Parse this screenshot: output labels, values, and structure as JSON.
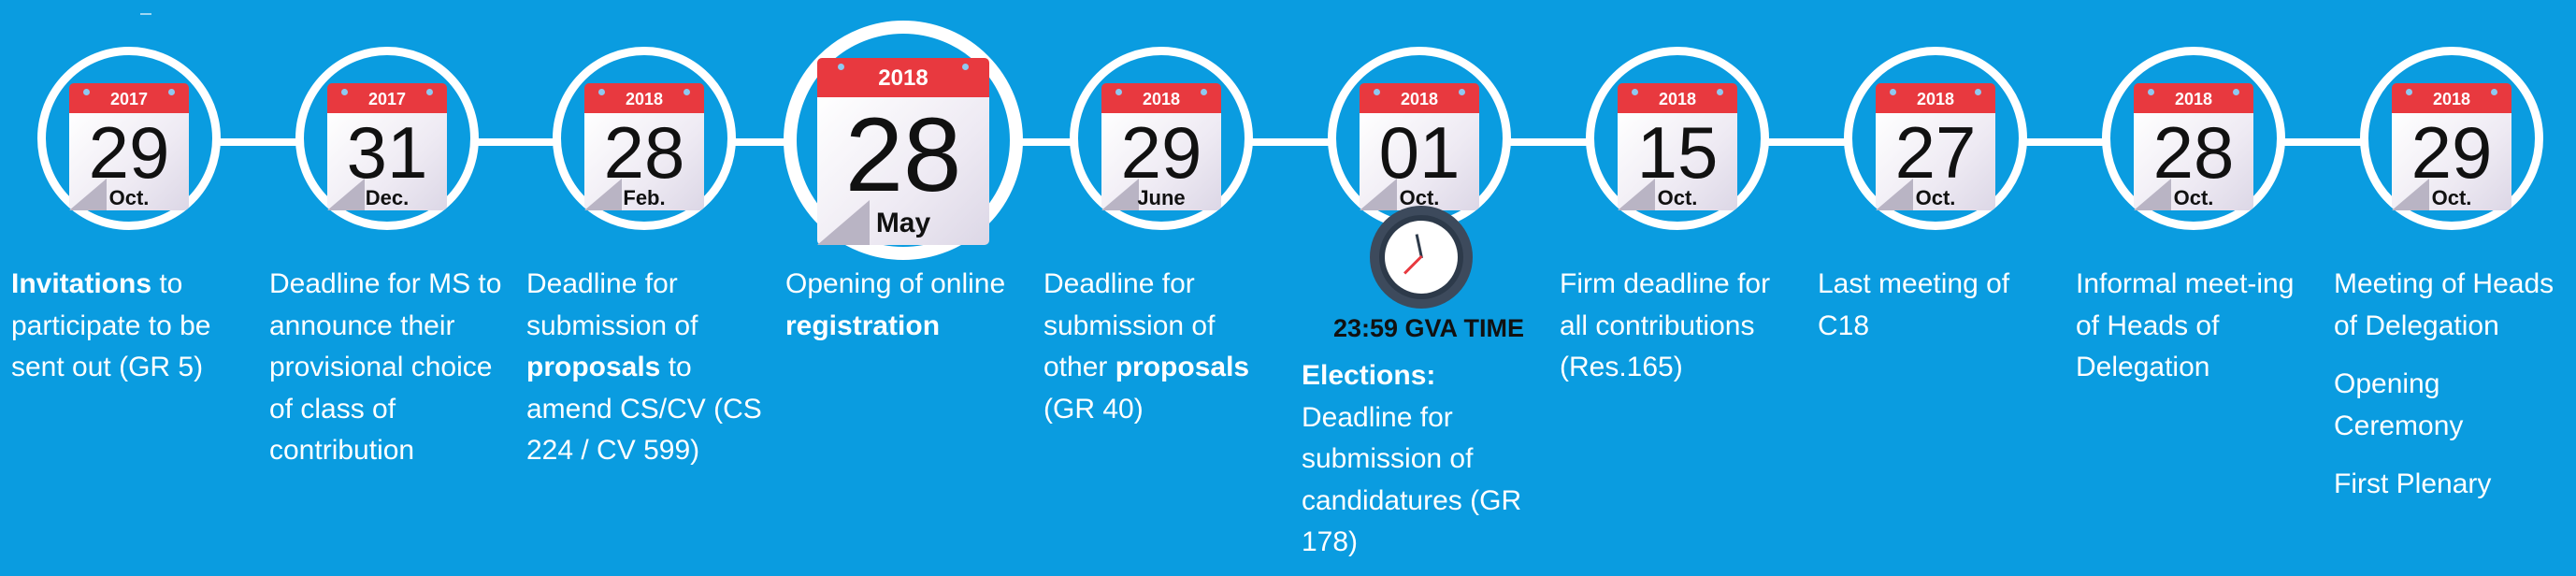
{
  "clock_label": "23:59 GVA TIME",
  "events": [
    {
      "year": "2017",
      "day": "29",
      "month": "Oct.",
      "desc": [
        [
          {
            "t": "Invitations",
            "b": true
          },
          {
            "t": " to participate to be sent out (GR 5)",
            "b": false
          }
        ]
      ]
    },
    {
      "year": "2017",
      "day": "31",
      "month": "Dec.",
      "desc": [
        [
          {
            "t": "Deadline for MS to announce their provisional choice of class of contribution",
            "b": false
          }
        ]
      ]
    },
    {
      "year": "2018",
      "day": "28",
      "month": "Feb.",
      "desc": [
        [
          {
            "t": "Deadline for submission of ",
            "b": false
          },
          {
            "t": "proposals",
            "b": true
          },
          {
            "t": " to amend CS/CV (CS 224 / CV 599)",
            "b": false
          }
        ]
      ]
    },
    {
      "year": "2018",
      "day": "28",
      "month": "May",
      "big": true,
      "desc": [
        [
          {
            "t": "Opening of online ",
            "b": false
          },
          {
            "t": "registration",
            "b": true
          }
        ]
      ]
    },
    {
      "year": "2018",
      "day": "29",
      "month": "June",
      "desc": [
        [
          {
            "t": "Deadline for submission of other ",
            "b": false
          },
          {
            "t": "proposals",
            "b": true
          },
          {
            "t": " (GR 40)",
            "b": false
          }
        ]
      ]
    },
    {
      "year": "2018",
      "day": "01",
      "month": "Oct.",
      "clock": true,
      "desc": [
        [
          {
            "t": "Elections:",
            "b": true
          },
          {
            "t": " Deadline for submission of candidatures (GR 178)",
            "b": false
          }
        ]
      ]
    },
    {
      "year": "2018",
      "day": "15",
      "month": "Oct.",
      "desc": [
        [
          {
            "t": "Firm deadline for all contributions (Res.165)",
            "b": false
          }
        ]
      ]
    },
    {
      "year": "2018",
      "day": "27",
      "month": "Oct.",
      "desc": [
        [
          {
            "t": "Last meeting of C18",
            "b": false
          }
        ]
      ]
    },
    {
      "year": "2018",
      "day": "28",
      "month": "Oct.",
      "desc": [
        [
          {
            "t": "Informal meet-ing of Heads of Delegation",
            "b": false
          }
        ]
      ]
    },
    {
      "year": "2018",
      "day": "29",
      "month": "Oct.",
      "desc": [
        [
          {
            "t": "Meeting of Heads of Delegation",
            "b": false
          }
        ],
        [
          {
            "t": "Opening Ceremony",
            "b": false
          }
        ],
        [
          {
            "t": "First Plenary",
            "b": false
          }
        ]
      ]
    }
  ]
}
